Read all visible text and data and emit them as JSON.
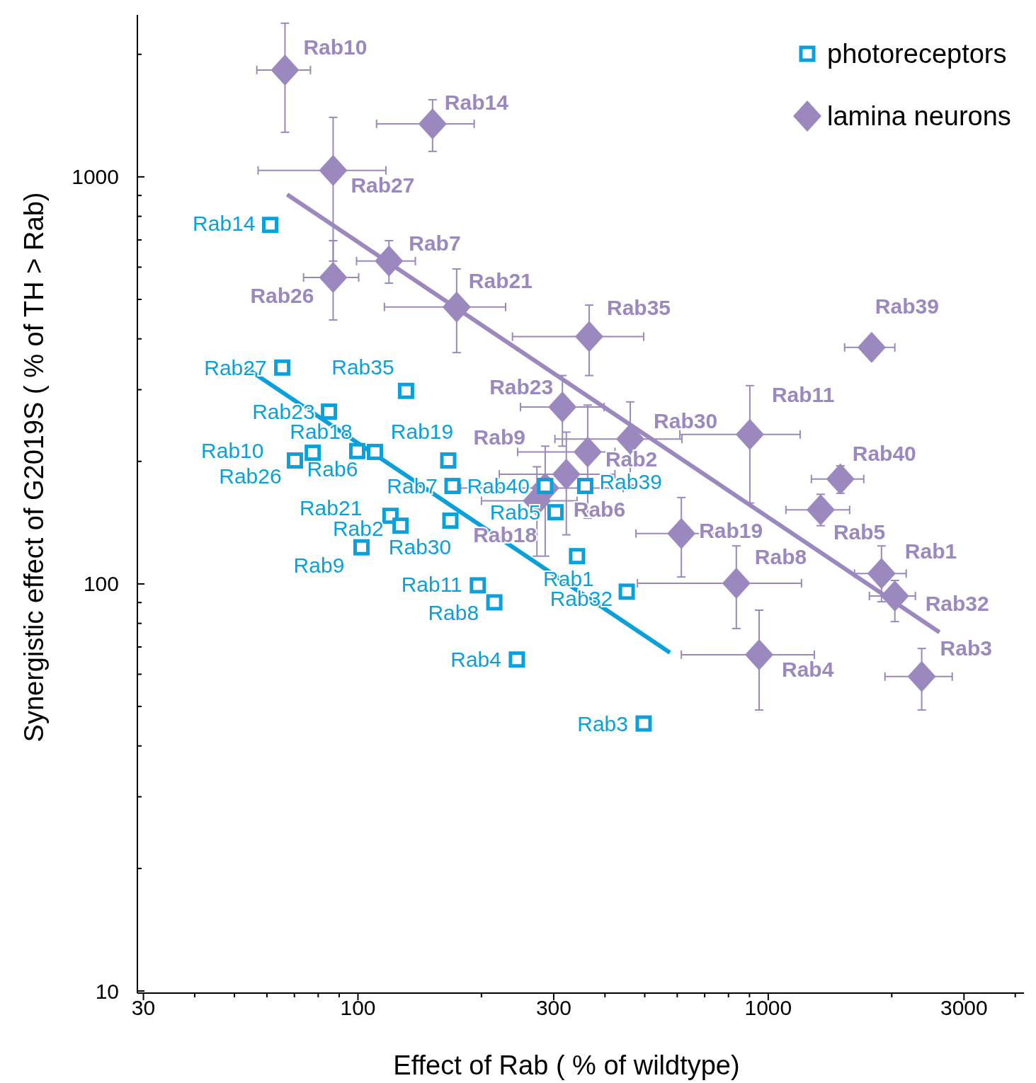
{
  "chart_data": {
    "type": "scatter",
    "xlabel": "Effect of Rab ( % of wildtype)",
    "ylabel": "Synergistic effect of G2019S ( % of TH > Rab)",
    "log": "xy",
    "xlim": [
      29,
      4200
    ],
    "ylim": [
      10,
      2500
    ],
    "xticks": [
      30,
      {
        "value": 40,
        "label": null
      },
      {
        "value": 50,
        "label": null
      },
      {
        "value": 60,
        "label": null
      },
      {
        "value": 70,
        "label": null
      },
      {
        "value": 80,
        "label": null
      },
      {
        "value": 90,
        "label": null
      },
      100,
      {
        "value": 200,
        "label": null
      },
      300,
      {
        "value": 400,
        "label": null
      },
      {
        "value": 500,
        "label": null
      },
      {
        "value": 600,
        "label": null
      },
      {
        "value": 700,
        "label": null
      },
      {
        "value": 800,
        "label": null
      },
      {
        "value": 900,
        "label": null
      },
      1000,
      {
        "value": 2000,
        "label": null
      },
      3000,
      {
        "value": 4000,
        "label": null
      }
    ],
    "yticks": [
      10,
      {
        "value": 20,
        "label": null
      },
      {
        "value": 30,
        "label": null
      },
      {
        "value": 40,
        "label": null
      },
      {
        "value": 50,
        "label": null
      },
      {
        "value": 60,
        "label": null
      },
      {
        "value": 70,
        "label": null
      },
      {
        "value": 80,
        "label": null
      },
      {
        "value": 90,
        "label": null
      },
      100,
      {
        "value": 200,
        "label": null
      },
      {
        "value": 300,
        "label": null
      },
      {
        "value": 400,
        "label": null
      },
      {
        "value": 500,
        "label": null
      },
      {
        "value": 600,
        "label": null
      },
      {
        "value": 700,
        "label": null
      },
      {
        "value": 800,
        "label": null
      },
      {
        "value": 900,
        "label": null
      },
      1000,
      {
        "value": 2000,
        "label": null
      }
    ],
    "legend": "top right",
    "series": [
      {
        "name": "photoreceptors",
        "marker": "square",
        "color": "#0aa0dc",
        "x": [
          61.1,
          65.4,
          131,
          85.0,
          70.2,
          77.6,
          99.6,
          110,
          166,
          170,
          286,
          358,
          120,
          127,
          168,
          102,
          303,
          342,
          196,
          215,
          244,
          452,
          497
        ],
        "values": [
          762,
          340,
          298,
          265,
          201,
          210,
          212,
          211,
          201,
          174,
          174,
          174,
          147,
          139,
          143,
          123,
          150,
          117,
          99.2,
          90.1,
          65.2,
          95.7,
          45.4
        ],
        "value_labels": [
          "Rab14",
          "Rab27",
          "Rab35",
          "Rab23",
          "Rab10",
          "Rab26",
          "Rab18",
          "Rab6",
          "Rab19",
          "Rab7",
          "Rab40",
          "Rab39",
          "Rab21",
          "Rab2",
          "Rab30",
          "Rab9",
          "Rab5",
          "Rab1",
          "Rab11",
          "Rab8",
          "Rab4",
          "Rab32",
          "Rab3"
        ]
      },
      {
        "name": "lamina neurons",
        "marker": "diamond",
        "color": "#9b88bf",
        "x": [
          66.4,
          152,
          87.0,
          87.0,
          119,
          174,
          366,
          1786,
          315,
          461,
          363,
          322,
          286,
          273,
          902,
          1499,
          1342,
          614,
          836,
          1888,
          2035,
          950,
          2366
        ],
        "values": [
          1830,
          1350,
          1037,
          566,
          621,
          479,
          405,
          381,
          272,
          227,
          211,
          186,
          172,
          160,
          233,
          181,
          152,
          133,
          100.4,
          106,
          93.4,
          67.0,
          59.2
        ],
        "xerrors": [
          [
            56.7,
            76.6
          ],
          [
            111,
            192
          ],
          [
            57.1,
            117
          ],
          [
            73.7,
            100.4
          ],
          [
            99.2,
            138
          ],
          [
            116,
            229
          ],
          [
            238,
            497
          ],
          [
            1535,
            2035
          ],
          [
            249,
            398
          ],
          [
            302,
            616
          ],
          [
            245,
            423
          ],
          [
            221,
            423
          ],
          [
            178,
            443
          ],
          [
            200,
            342
          ],
          [
            609,
            1196
          ],
          [
            1274,
            1709
          ],
          [
            1104,
            1579
          ],
          [
            476,
            804
          ],
          [
            480,
            1205
          ],
          [
            1623,
            2169
          ],
          [
            1764,
            2284
          ],
          [
            614,
            1295
          ],
          [
            1925,
            2808
          ]
        ],
        "errors": [
          [
            1287,
            2385
          ],
          [
            1155,
            1547
          ],
          [
            621,
            1400
          ],
          [
            445,
            697
          ],
          [
            548,
            697
          ],
          [
            370,
            594
          ],
          [
            325,
            484
          ],
          null,
          [
            218,
            325
          ],
          [
            175,
            280
          ],
          [
            145,
            275
          ],
          [
            132,
            236
          ],
          [
            117,
            218
          ],
          [
            117,
            194
          ],
          [
            158,
            307
          ],
          [
            167,
            195
          ],
          [
            139,
            166
          ],
          [
            104,
            163
          ],
          [
            77.7,
            124
          ],
          [
            90.4,
            124
          ],
          [
            80.8,
            102
          ],
          [
            49.0,
            86.2
          ],
          [
            49.0,
            69.4
          ]
        ],
        "value_labels": [
          "Rab10",
          "Rab14",
          "Rab27",
          "Rab26",
          "Rab7",
          "Rab21",
          "Rab35",
          "Rab39",
          "Rab23",
          "Rab30",
          "Rab2",
          "Rab6",
          "Rab9",
          "Rab18",
          "Rab11",
          "Rab40",
          "Rab5",
          "Rab19",
          "Rab8",
          "Rab1",
          "Rab32",
          "Rab4",
          "Rab3"
        ]
      },
      {
        "type": "line",
        "color": "#0aa0dc",
        "x": [
          53.2,
          576
        ],
        "values": [
          340,
          67.8
        ]
      },
      {
        "type": "line",
        "color": "#9b88bf",
        "x": [
          67.2,
          2614
        ],
        "values": [
          905,
          76.1
        ]
      }
    ]
  }
}
